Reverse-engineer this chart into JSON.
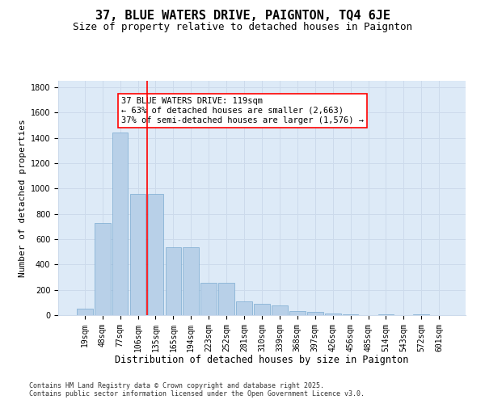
{
  "title": "37, BLUE WATERS DRIVE, PAIGNTON, TQ4 6JE",
  "subtitle": "Size of property relative to detached houses in Paignton",
  "xlabel": "Distribution of detached houses by size in Paignton",
  "ylabel": "Number of detached properties",
  "categories": [
    "19sqm",
    "48sqm",
    "77sqm",
    "106sqm",
    "135sqm",
    "165sqm",
    "194sqm",
    "223sqm",
    "252sqm",
    "281sqm",
    "310sqm",
    "339sqm",
    "368sqm",
    "397sqm",
    "426sqm",
    "456sqm",
    "485sqm",
    "514sqm",
    "543sqm",
    "572sqm",
    "601sqm"
  ],
  "values": [
    50,
    730,
    1440,
    960,
    955,
    535,
    535,
    255,
    255,
    110,
    90,
    75,
    30,
    25,
    12,
    5,
    2,
    5,
    2,
    8,
    2
  ],
  "bar_color": "#b8d0e8",
  "bar_edge_color": "#7aaad0",
  "grid_color": "#ccdaeb",
  "background_color": "#ddeaf7",
  "vline_x": 3.5,
  "vline_color": "red",
  "annotation_text": "37 BLUE WATERS DRIVE: 119sqm\n← 63% of detached houses are smaller (2,663)\n37% of semi-detached houses are larger (1,576) →",
  "annotation_box_color": "red",
  "ylim": [
    0,
    1850
  ],
  "yticks": [
    0,
    200,
    400,
    600,
    800,
    1000,
    1200,
    1400,
    1600,
    1800
  ],
  "footer_text": "Contains HM Land Registry data © Crown copyright and database right 2025.\nContains public sector information licensed under the Open Government Licence v3.0.",
  "title_fontsize": 11,
  "subtitle_fontsize": 9,
  "xlabel_fontsize": 8.5,
  "ylabel_fontsize": 8,
  "tick_fontsize": 7,
  "annotation_fontsize": 7.5,
  "footer_fontsize": 6
}
